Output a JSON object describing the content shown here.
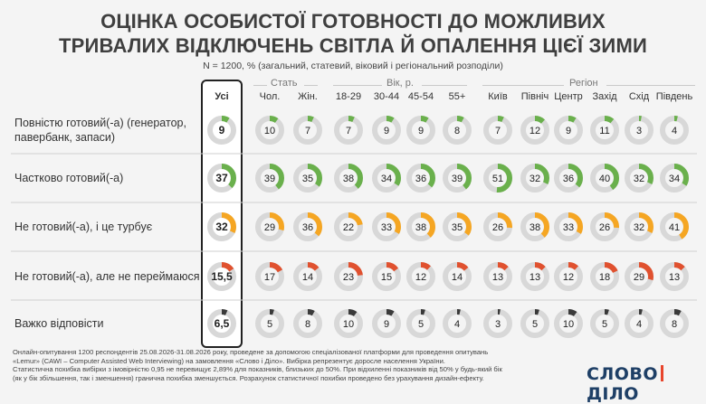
{
  "title_line1": "ОЦІНКА ОСОБИСТОЇ ГОТОВНОСТІ ДО МОЖЛИВИХ",
  "title_line2": "ТРИВАЛИХ ВІДКЛЮЧЕНЬ СВІТЛА Й ОПАЛЕННЯ ЦІЄЇ ЗИМИ",
  "subtitle": "N = 1200, % (загальний, статевий, віковий і регіональний розподіли)",
  "groups": {
    "gender": "Стать",
    "age": "Вік, р.",
    "region": "Регіон"
  },
  "footer": {
    "line1": "Онлайн-опитування 1200 респондентів 25.08.2026-31.08.2026 року, проведене за допомогою спеціалізованої платформи для проведення опитувань",
    "line2": "«Lemur» (CAWI – Computer Assisted Web Interviewing) на замовлення «Слово і Діло». Вибірка репрезентує доросле населення України.",
    "line3": "Статистична похибка вибірки з імовірністю 0,95 не перевищує 2,89% для показників, близьких до 50%. При відхиленні показників від 50% у будь-який бік",
    "line4": "(як у бік збільшення, так і зменшення) гранична похибка зменшується. Розрахунок статистичної похибки проведено без урахування дизайн-ефекту."
  },
  "logo": {
    "left": "СЛОВО",
    "right": "ДІЛО"
  },
  "chart_data": {
    "type": "table",
    "columns": [
      "Усі",
      "Чол.",
      "Жін.",
      "18-29",
      "30-44",
      "45-54",
      "55+",
      "Київ",
      "Північ",
      "Центр",
      "Захід",
      "Схід",
      "Південь"
    ],
    "rows": [
      {
        "label_lines": [
          "Повністю готовий(-а) (генератор,",
          "павербанк, запаси)"
        ],
        "color": "#6ab04c",
        "values": [
          9,
          10,
          7,
          7,
          9,
          9,
          8,
          7,
          12,
          9,
          11,
          3,
          4
        ],
        "labels": [
          "9",
          "10",
          "7",
          "7",
          "9",
          "9",
          "8",
          "7",
          "12",
          "9",
          "11",
          "3",
          "4"
        ]
      },
      {
        "label_lines": [
          "Частково готовий(-а)"
        ],
        "color": "#6ab04c",
        "values": [
          37,
          39,
          35,
          38,
          34,
          36,
          39,
          51,
          32,
          36,
          40,
          32,
          34
        ],
        "labels": [
          "37",
          "39",
          "35",
          "38",
          "34",
          "36",
          "39",
          "51",
          "32",
          "36",
          "40",
          "32",
          "34"
        ]
      },
      {
        "label_lines": [
          "Не готовий(-а), і це турбує"
        ],
        "color": "#f5a623",
        "values": [
          32,
          29,
          36,
          22,
          33,
          38,
          35,
          26,
          38,
          33,
          26,
          32,
          41
        ],
        "labels": [
          "32",
          "29",
          "36",
          "22",
          "33",
          "38",
          "35",
          "26",
          "38",
          "33",
          "26",
          "32",
          "41"
        ]
      },
      {
        "label_lines": [
          "Не готовий(-а), але не переймаюся"
        ],
        "color": "#e0512f",
        "values": [
          15.5,
          17,
          14,
          23,
          15,
          12,
          14,
          13,
          13,
          12,
          18,
          29,
          13
        ],
        "labels": [
          "15,5",
          "17",
          "14",
          "23",
          "15",
          "12",
          "14",
          "13",
          "13",
          "12",
          "18",
          "29",
          "13"
        ]
      },
      {
        "label_lines": [
          "Важко відповісти"
        ],
        "color": "#3a3a3a",
        "values": [
          6.5,
          5,
          8,
          10,
          9,
          5,
          4,
          3,
          5,
          10,
          5,
          4,
          8
        ],
        "labels": [
          "6,5",
          "5",
          "8",
          "10",
          "9",
          "5",
          "4",
          "3",
          "5",
          "10",
          "5",
          "4",
          "8"
        ]
      }
    ]
  }
}
